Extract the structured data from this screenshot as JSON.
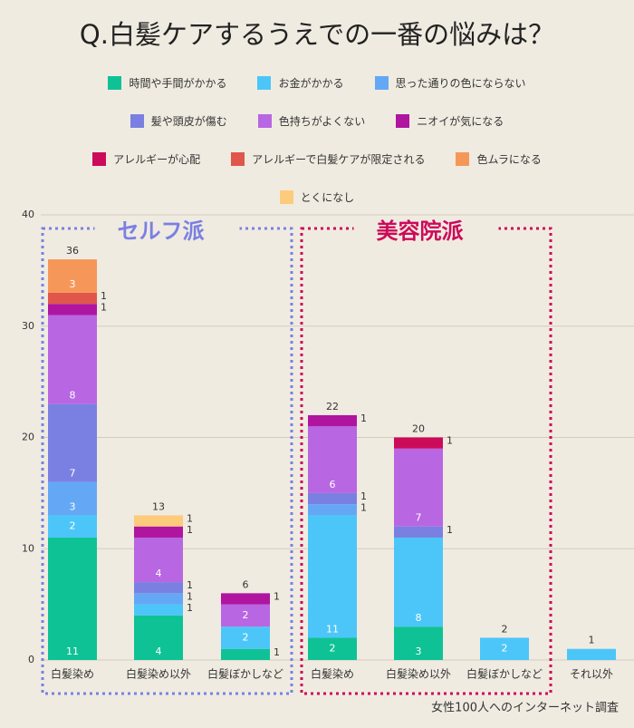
{
  "chart_data": {
    "type": "stacked-bar",
    "title": "Q.白髪ケアするうえでの一番の悩みは？",
    "categories": [
      "白髪染め",
      "白髪染め以外",
      "白髪ぼかしなど",
      "白髪染め",
      "白髪染め以外",
      "白髪ぼかしなど",
      "それ以外"
    ],
    "series": [
      {
        "name": "時間や手間がかかる",
        "color": "#0fc296",
        "values": [
          11,
          4,
          1,
          2,
          3,
          0,
          0
        ]
      },
      {
        "name": "お金がかかる",
        "color": "#4cc6f8",
        "values": [
          2,
          1,
          2,
          11,
          8,
          2,
          1
        ]
      },
      {
        "name": "思った通りの色にならない",
        "color": "#64a8f5",
        "values": [
          3,
          1,
          0,
          1,
          0,
          0,
          0
        ]
      },
      {
        "name": "髪や頭皮が傷む",
        "color": "#7a80e2",
        "values": [
          7,
          1,
          0,
          1,
          1,
          0,
          0
        ]
      },
      {
        "name": "色持ちがよくない",
        "color": "#b866e2",
        "values": [
          8,
          4,
          2,
          6,
          7,
          0,
          0
        ]
      },
      {
        "name": "ニオイが気になる",
        "color": "#b0159f",
        "values": [
          1,
          1,
          1,
          1,
          0,
          0,
          0
        ]
      },
      {
        "name": "アレルギーが心配",
        "color": "#cc0a5a",
        "values": [
          0,
          0,
          0,
          0,
          1,
          0,
          0
        ]
      },
      {
        "name": "アレルギーで白髪ケアが限定される",
        "color": "#e0564a",
        "values": [
          1,
          0,
          0,
          0,
          0,
          0,
          0
        ]
      },
      {
        "name": "色ムラになる",
        "color": "#f6975a",
        "values": [
          3,
          0,
          0,
          0,
          0,
          0,
          0
        ]
      },
      {
        "name": "とくになし",
        "color": "#fdcb7c",
        "values": [
          0,
          1,
          0,
          0,
          0,
          0,
          0
        ]
      }
    ],
    "totals": [
      36,
      13,
      6,
      22,
      20,
      2,
      1
    ],
    "ylim": [
      0,
      40
    ],
    "yticks": [
      0,
      10,
      20,
      30,
      40
    ],
    "grid": true,
    "groups": [
      {
        "label": "セルフ派",
        "color": "#7a80e2"
      },
      {
        "label": "美容院派",
        "color": "#cc0a5a"
      }
    ],
    "note": "女性100人へのインターネット調査"
  }
}
